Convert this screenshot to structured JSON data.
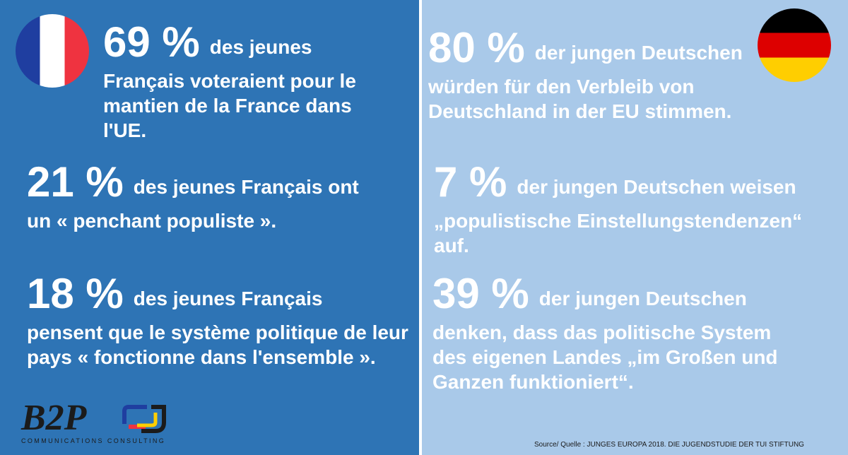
{
  "left": {
    "stats": [
      {
        "percent": "69 %",
        "head": "des jeunes",
        "body": "Français voteraient pour le mantien de la France dans l'UE."
      },
      {
        "percent": "21 %",
        "head": "des jeunes Français ont",
        "body": "un « penchant populiste »."
      },
      {
        "percent": "18 %",
        "head": "des jeunes Français",
        "body": "pensent que le système politique de leur pays « fonctionne dans l'ensemble »."
      }
    ]
  },
  "right": {
    "stats": [
      {
        "percent": "80 %",
        "head": "der jungen Deutschen",
        "body": "würden für den Verbleib von Deutschland in der EU stimmen."
      },
      {
        "percent": "7 %",
        "head": "der jungen Deutschen weisen",
        "body": "„populistische Einstellungstendenzen“ auf."
      },
      {
        "percent": "39 %",
        "head": "der jungen Deutschen",
        "body": "denken, dass das politische System des eigenen Landes „im Großen und Ganzen funktioniert“."
      }
    ]
  },
  "logo": {
    "text": "B2P",
    "subtitle": "COMMUNICATIONS CONSULTING"
  },
  "source": "Source/ Quelle : JUNGES EUROPA 2018. DIE JUGENDSTUDIE DER TUI STIFTUNG",
  "colors": {
    "left_panel": "#2e74b5",
    "right_panel": "#a9c9e9",
    "france_blue": "#1f3ea0",
    "france_red": "#ef3340",
    "germany_black": "#000000",
    "germany_red": "#dd0000",
    "germany_gold": "#ffce00"
  },
  "icons": {
    "left_flag": "france-flag-icon",
    "right_flag": "germany-flag-icon",
    "logo_mark": "b2p-logo-mark-icon"
  }
}
